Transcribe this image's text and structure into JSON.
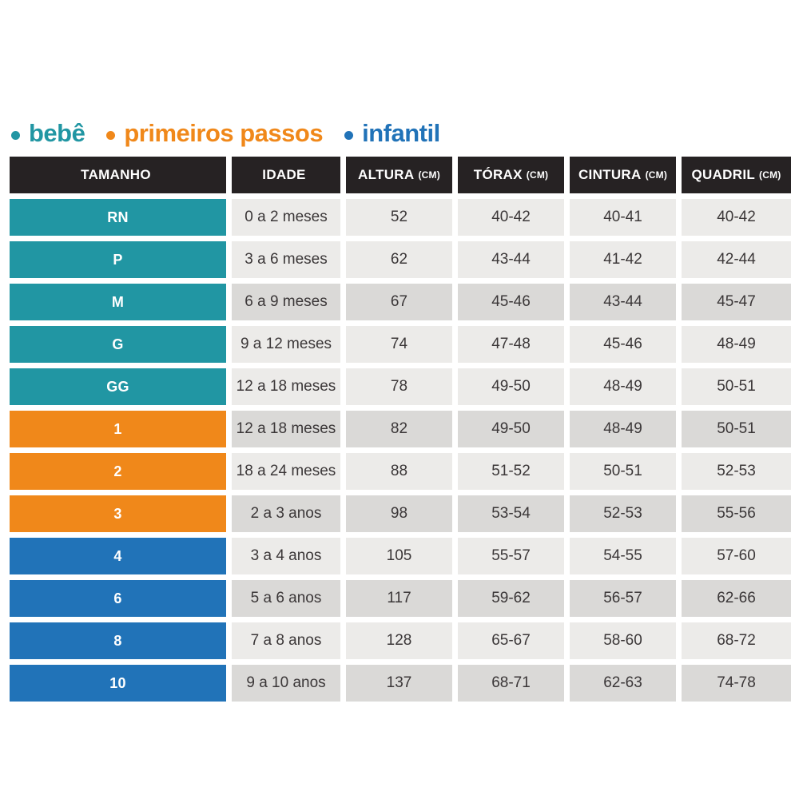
{
  "colors": {
    "bebe": "#2196A3",
    "primeiros_passos": "#F0881A",
    "infantil": "#2173B8",
    "header_bg": "#262223",
    "header_text": "#FFFFFF",
    "cell_light": "#ECEBE9",
    "cell_dark": "#DAD9D7",
    "cell_text": "#3B3738"
  },
  "legend": {
    "items": [
      {
        "label": "bebê",
        "color": "#2196A3"
      },
      {
        "label": "primeiros passos",
        "color": "#F0881A"
      },
      {
        "label": "infantil",
        "color": "#2173B8"
      }
    ]
  },
  "chart_data": {
    "type": "table",
    "columns": [
      {
        "label": "TAMANHO",
        "unit": ""
      },
      {
        "label": "IDADE",
        "unit": ""
      },
      {
        "label": "ALTURA",
        "unit": "(CM)"
      },
      {
        "label": "TÓRAX",
        "unit": "(CM)"
      },
      {
        "label": "CINTURA",
        "unit": "(CM)"
      },
      {
        "label": "QUADRIL",
        "unit": "(CM)"
      }
    ],
    "rows": [
      {
        "tamanho": "RN",
        "group": "bebe",
        "shade": "light",
        "idade": "0 a 2 meses",
        "altura": "52",
        "torax": "40-42",
        "cintura": "40-41",
        "quadril": "40-42"
      },
      {
        "tamanho": "P",
        "group": "bebe",
        "shade": "light",
        "idade": "3 a 6 meses",
        "altura": "62",
        "torax": "43-44",
        "cintura": "41-42",
        "quadril": "42-44"
      },
      {
        "tamanho": "M",
        "group": "bebe",
        "shade": "dark",
        "idade": "6 a 9 meses",
        "altura": "67",
        "torax": "45-46",
        "cintura": "43-44",
        "quadril": "45-47"
      },
      {
        "tamanho": "G",
        "group": "bebe",
        "shade": "light",
        "idade": "9 a 12 meses",
        "altura": "74",
        "torax": "47-48",
        "cintura": "45-46",
        "quadril": "48-49"
      },
      {
        "tamanho": "GG",
        "group": "bebe",
        "shade": "light",
        "idade": "12 a 18 meses",
        "altura": "78",
        "torax": "49-50",
        "cintura": "48-49",
        "quadril": "50-51"
      },
      {
        "tamanho": "1",
        "group": "primeiros_passos",
        "shade": "dark",
        "idade": "12 a 18 meses",
        "altura": "82",
        "torax": "49-50",
        "cintura": "48-49",
        "quadril": "50-51"
      },
      {
        "tamanho": "2",
        "group": "primeiros_passos",
        "shade": "light",
        "idade": "18 a 24 meses",
        "altura": "88",
        "torax": "51-52",
        "cintura": "50-51",
        "quadril": "52-53"
      },
      {
        "tamanho": "3",
        "group": "primeiros_passos",
        "shade": "dark",
        "idade": "2 a 3 anos",
        "altura": "98",
        "torax": "53-54",
        "cintura": "52-53",
        "quadril": "55-56"
      },
      {
        "tamanho": "4",
        "group": "infantil",
        "shade": "light",
        "idade": "3 a 4 anos",
        "altura": "105",
        "torax": "55-57",
        "cintura": "54-55",
        "quadril": "57-60"
      },
      {
        "tamanho": "6",
        "group": "infantil",
        "shade": "dark",
        "idade": "5 a 6 anos",
        "altura": "117",
        "torax": "59-62",
        "cintura": "56-57",
        "quadril": "62-66"
      },
      {
        "tamanho": "8",
        "group": "infantil",
        "shade": "light",
        "idade": "7 a 8 anos",
        "altura": "128",
        "torax": "65-67",
        "cintura": "58-60",
        "quadril": "68-72"
      },
      {
        "tamanho": "10",
        "group": "infantil",
        "shade": "dark",
        "idade": "9 a 10 anos",
        "altura": "137",
        "torax": "68-71",
        "cintura": "62-63",
        "quadril": "74-78"
      }
    ]
  }
}
